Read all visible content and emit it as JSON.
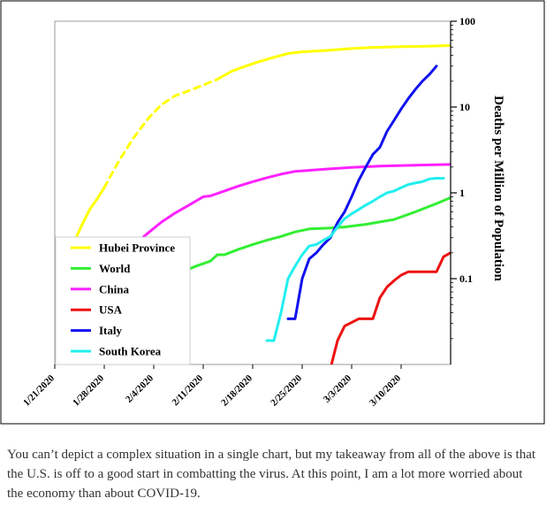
{
  "chart_data": {
    "type": "line",
    "title": "",
    "xlabel": "",
    "ylabel": "Deaths per Million of Population",
    "y_scale": "log",
    "ylim": [
      0.01,
      100
    ],
    "y_ticks": [
      {
        "value": 100,
        "label": "100"
      },
      {
        "value": 10,
        "label": "10"
      },
      {
        "value": 1,
        "label": "1"
      },
      {
        "value": 0.1,
        "label": "0.1"
      }
    ],
    "x_ticks": [
      "1/21/2020",
      "1/28/2020",
      "2/4/2020",
      "2/11/2020",
      "2/18/2020",
      "2/25/2020",
      "3/3/2020",
      "3/10/2020"
    ],
    "xlim": [
      "2020-01-21",
      "2020-03-17"
    ],
    "grid": false,
    "legend_position": "bottom-left",
    "series": [
      {
        "name": "Hubei Province",
        "color": "#ffff00",
        "segments": [
          {
            "style": "solid",
            "points": [
              [
                "2020-01-23",
                0.15
              ],
              [
                "2020-01-24",
                0.3
              ],
              [
                "2020-01-25",
                0.45
              ],
              [
                "2020-01-26",
                0.65
              ],
              [
                "2020-01-27",
                0.85
              ],
              [
                "2020-01-28",
                1.15
              ]
            ]
          },
          {
            "style": "dashed",
            "points": [
              [
                "2020-01-28",
                1.15
              ],
              [
                "2020-01-30",
                2.3
              ],
              [
                "2020-02-01",
                4.2
              ],
              [
                "2020-02-03",
                7.0
              ],
              [
                "2020-02-05",
                10.5
              ],
              [
                "2020-02-07",
                13.5
              ],
              [
                "2020-02-09",
                15.5
              ],
              [
                "2020-02-11",
                18.0
              ],
              [
                "2020-02-13",
                21.0
              ]
            ]
          },
          {
            "style": "solid",
            "points": [
              [
                "2020-02-13",
                21.0
              ],
              [
                "2020-02-15",
                26.0
              ],
              [
                "2020-02-17",
                30.0
              ],
              [
                "2020-02-19",
                34.0
              ],
              [
                "2020-02-21",
                38.0
              ],
              [
                "2020-02-23",
                42.0
              ],
              [
                "2020-02-25",
                44.0
              ],
              [
                "2020-02-29",
                46.0
              ],
              [
                "2020-03-03",
                48.0
              ],
              [
                "2020-03-06",
                49.5
              ],
              [
                "2020-03-10",
                50.5
              ],
              [
                "2020-03-13",
                51.0
              ],
              [
                "2020-03-17",
                52.0
              ]
            ]
          }
        ]
      },
      {
        "name": "World",
        "color": "#33ee33",
        "segments": [
          {
            "style": "solid",
            "points": [
              [
                "2020-01-27",
                0.011
              ],
              [
                "2020-01-28",
                0.014
              ]
            ]
          },
          {
            "style": "solid",
            "points": [
              [
                "2020-02-08",
                0.12
              ],
              [
                "2020-02-10",
                0.14
              ],
              [
                "2020-02-12",
                0.16
              ],
              [
                "2020-02-13",
                0.19
              ],
              [
                "2020-02-14",
                0.19
              ],
              [
                "2020-02-16",
                0.22
              ],
              [
                "2020-02-18",
                0.25
              ],
              [
                "2020-02-20",
                0.28
              ],
              [
                "2020-02-22",
                0.31
              ],
              [
                "2020-02-24",
                0.35
              ],
              [
                "2020-02-26",
                0.38
              ],
              [
                "2020-02-29",
                0.39
              ],
              [
                "2020-03-02",
                0.4
              ],
              [
                "2020-03-05",
                0.43
              ],
              [
                "2020-03-09",
                0.49
              ],
              [
                "2020-03-12",
                0.6
              ],
              [
                "2020-03-15",
                0.75
              ],
              [
                "2020-03-17",
                0.88
              ]
            ]
          }
        ]
      },
      {
        "name": "China",
        "color": "#ff22ff",
        "segments": [
          {
            "style": "solid",
            "points": [
              [
                "2020-01-23",
                0.012
              ],
              [
                "2020-01-23",
                0.009
              ]
            ]
          },
          {
            "style": "solid",
            "points": [
              [
                "2020-02-01",
                0.24
              ],
              [
                "2020-02-03",
                0.33
              ],
              [
                "2020-02-05",
                0.45
              ],
              [
                "2020-02-07",
                0.58
              ],
              [
                "2020-02-09",
                0.72
              ],
              [
                "2020-02-11",
                0.9
              ],
              [
                "2020-02-12",
                0.92
              ],
              [
                "2020-02-14",
                1.05
              ],
              [
                "2020-02-16",
                1.2
              ],
              [
                "2020-02-18",
                1.35
              ],
              [
                "2020-02-20",
                1.5
              ],
              [
                "2020-02-22",
                1.65
              ],
              [
                "2020-02-24",
                1.78
              ],
              [
                "2020-02-28",
                1.88
              ],
              [
                "2020-03-03",
                1.98
              ],
              [
                "2020-03-07",
                2.05
              ],
              [
                "2020-03-12",
                2.1
              ],
              [
                "2020-03-17",
                2.15
              ]
            ]
          }
        ]
      },
      {
        "name": "USA",
        "color": "#ee1111",
        "segments": [
          {
            "style": "solid",
            "points": [
              [
                "2020-02-29",
                0.009
              ],
              [
                "2020-03-01",
                0.019
              ],
              [
                "2020-03-02",
                0.028
              ],
              [
                "2020-03-04",
                0.034
              ],
              [
                "2020-03-06",
                0.034
              ],
              [
                "2020-03-07",
                0.06
              ],
              [
                "2020-03-08",
                0.08
              ],
              [
                "2020-03-09",
                0.095
              ],
              [
                "2020-03-10",
                0.11
              ],
              [
                "2020-03-11",
                0.12
              ],
              [
                "2020-03-15",
                0.12
              ],
              [
                "2020-03-16",
                0.18
              ],
              [
                "2020-03-17",
                0.2
              ]
            ]
          }
        ]
      },
      {
        "name": "Italy",
        "color": "#1111ee",
        "segments": [
          {
            "style": "solid",
            "points": [
              [
                "2020-02-23",
                0.034
              ],
              [
                "2020-02-24",
                0.034
              ],
              [
                "2020-02-25",
                0.1
              ],
              [
                "2020-02-26",
                0.17
              ],
              [
                "2020-02-27",
                0.2
              ],
              [
                "2020-02-28",
                0.25
              ],
              [
                "2020-02-29",
                0.3
              ],
              [
                "2020-03-01",
                0.45
              ],
              [
                "2020-03-02",
                0.6
              ],
              [
                "2020-03-03",
                0.9
              ],
              [
                "2020-03-04",
                1.4
              ],
              [
                "2020-03-05",
                2.0
              ],
              [
                "2020-03-06",
                2.8
              ],
              [
                "2020-03-07",
                3.4
              ],
              [
                "2020-03-08",
                5.2
              ],
              [
                "2020-03-09",
                7.0
              ],
              [
                "2020-03-10",
                9.5
              ],
              [
                "2020-03-11",
                12.5
              ],
              [
                "2020-03-12",
                16.0
              ],
              [
                "2020-03-13",
                20.0
              ],
              [
                "2020-03-14",
                24.0
              ],
              [
                "2020-03-15",
                30.0
              ]
            ]
          }
        ]
      },
      {
        "name": "South Korea",
        "color": "#22eeee",
        "segments": [
          {
            "style": "solid",
            "points": [
              [
                "2020-02-20",
                0.019
              ],
              [
                "2020-02-21",
                0.019
              ],
              [
                "2020-02-22",
                0.04
              ],
              [
                "2020-02-23",
                0.1
              ],
              [
                "2020-02-24",
                0.14
              ],
              [
                "2020-02-25",
                0.19
              ],
              [
                "2020-02-26",
                0.24
              ],
              [
                "2020-02-27",
                0.25
              ],
              [
                "2020-02-28",
                0.28
              ],
              [
                "2020-02-29",
                0.31
              ],
              [
                "2020-03-01",
                0.4
              ],
              [
                "2020-03-02",
                0.5
              ],
              [
                "2020-03-03",
                0.57
              ],
              [
                "2020-03-04",
                0.64
              ],
              [
                "2020-03-05",
                0.72
              ],
              [
                "2020-03-06",
                0.8
              ],
              [
                "2020-03-07",
                0.9
              ],
              [
                "2020-03-08",
                1.0
              ],
              [
                "2020-03-09",
                1.05
              ],
              [
                "2020-03-10",
                1.15
              ],
              [
                "2020-03-11",
                1.25
              ],
              [
                "2020-03-12",
                1.3
              ],
              [
                "2020-03-13",
                1.35
              ],
              [
                "2020-03-14",
                1.45
              ],
              [
                "2020-03-15",
                1.48
              ],
              [
                "2020-03-16",
                1.48
              ]
            ]
          }
        ]
      }
    ]
  },
  "caption": "You can’t depict a complex situation in a single chart, but my takeaway from all of the above is that the U.S. is off to a good start in combatting the virus. At this point, I am a lot more worried about the economy than about COVID-19."
}
